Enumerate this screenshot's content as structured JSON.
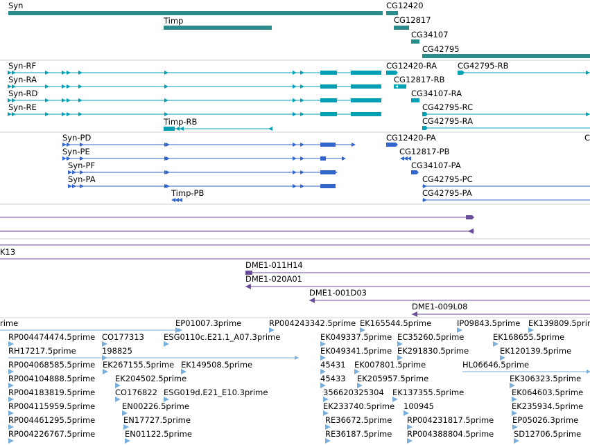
{
  "colors": {
    "gene": "#2b8a8a",
    "transcript": "#00a0b4",
    "protein": "#3366cc",
    "clone": "#6a4a9a",
    "est": "#7aafdc",
    "divider": "#d0d0d0"
  },
  "tracks": {
    "genes": [
      "Syn",
      "Timp",
      "CG12420",
      "CG12817",
      "CG34107",
      "CG42795"
    ],
    "transcripts": [
      "Syn-RF",
      "Syn-RA",
      "Syn-RD",
      "Syn-RE",
      "Timp-RB",
      "CG12420-RA",
      "CG12817-RB",
      "CG34107-RA",
      "CG42795-RB",
      "CG42795-RC",
      "CG42795-RA"
    ],
    "proteins": [
      "Syn-PD",
      "Syn-PE",
      "Syn-PF",
      "Syn-PA",
      "Timp-PB",
      "CG12420-PA",
      "CG12817-PB",
      "CG34107-PA",
      "CG42795-PC",
      "CG42795-PA",
      "C"
    ],
    "clones": [
      "K13",
      "DME1-011H14",
      "DME1-020A01",
      "DME1-001D03",
      "DME1-009L08"
    ],
    "ests": [
      "rime",
      "EP01007.3prime",
      "RP004243342.5prime",
      "EK165544.5prime",
      "IP09843.5prime",
      "EK139809.5prime",
      "RP004474474.5prime",
      "CO177313",
      "ESG0110c.E21.1_A07.3prime",
      "EK049337.5prime",
      "EC35260.5prime",
      "EK168655.5prime",
      "RH17217.5prime",
      "198825",
      "EK049341.5prime",
      "EK291830.5prime",
      "EK120139.5prime",
      "RP004068585.5prime",
      "EK267155.5prime",
      "EK149508.5prime",
      "45431",
      "EK007801.5prime",
      "HL06646.5prime",
      "RP004104888.5prime",
      "EK204502.5prime",
      "45433",
      "EK205957.5prime",
      "EK306323.5prime",
      "RP004183819.5prime",
      "CO176822",
      "ESG019d.E21_E10.3prime",
      "356620325304",
      "EK137355.5prime",
      "EK064603.5prime",
      "RP004115959.5prime",
      "EN00226.5prime",
      "EK233740.5prime",
      "100945",
      "EK235934.5prime",
      "RP004461295.5prime",
      "EN17727.5prime",
      "RE36672.5prime",
      "RP004231817.5prime",
      "EP05026.3prime",
      "RP004226767.5prime",
      "EN01122.5prime",
      "RE36187.5prime",
      "RP004388804.5prime",
      "SD12706.5prime"
    ]
  }
}
